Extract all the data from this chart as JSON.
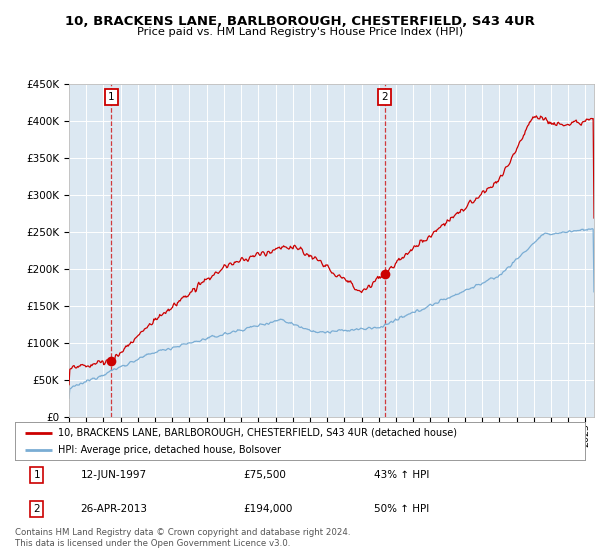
{
  "title": "10, BRACKENS LANE, BARLBOROUGH, CHESTERFIELD, S43 4UR",
  "subtitle": "Price paid vs. HM Land Registry's House Price Index (HPI)",
  "legend_line1": "10, BRACKENS LANE, BARLBOROUGH, CHESTERFIELD, S43 4UR (detached house)",
  "legend_line2": "HPI: Average price, detached house, Bolsover",
  "annotation1_date": "12-JUN-1997",
  "annotation1_price": "£75,500",
  "annotation1_hpi": "43% ↑ HPI",
  "annotation2_date": "26-APR-2013",
  "annotation2_price": "£194,000",
  "annotation2_hpi": "50% ↑ HPI",
  "footer": "Contains HM Land Registry data © Crown copyright and database right 2024.\nThis data is licensed under the Open Government Licence v3.0.",
  "red_color": "#cc0000",
  "blue_color": "#7aadd4",
  "background_color": "#dce8f2",
  "ylim": [
    0,
    450000
  ],
  "xlim_start": 1995.0,
  "xlim_end": 2025.5,
  "sale1_year": 1997.45,
  "sale1_price": 75500,
  "sale2_year": 2013.32,
  "sale2_price": 194000
}
